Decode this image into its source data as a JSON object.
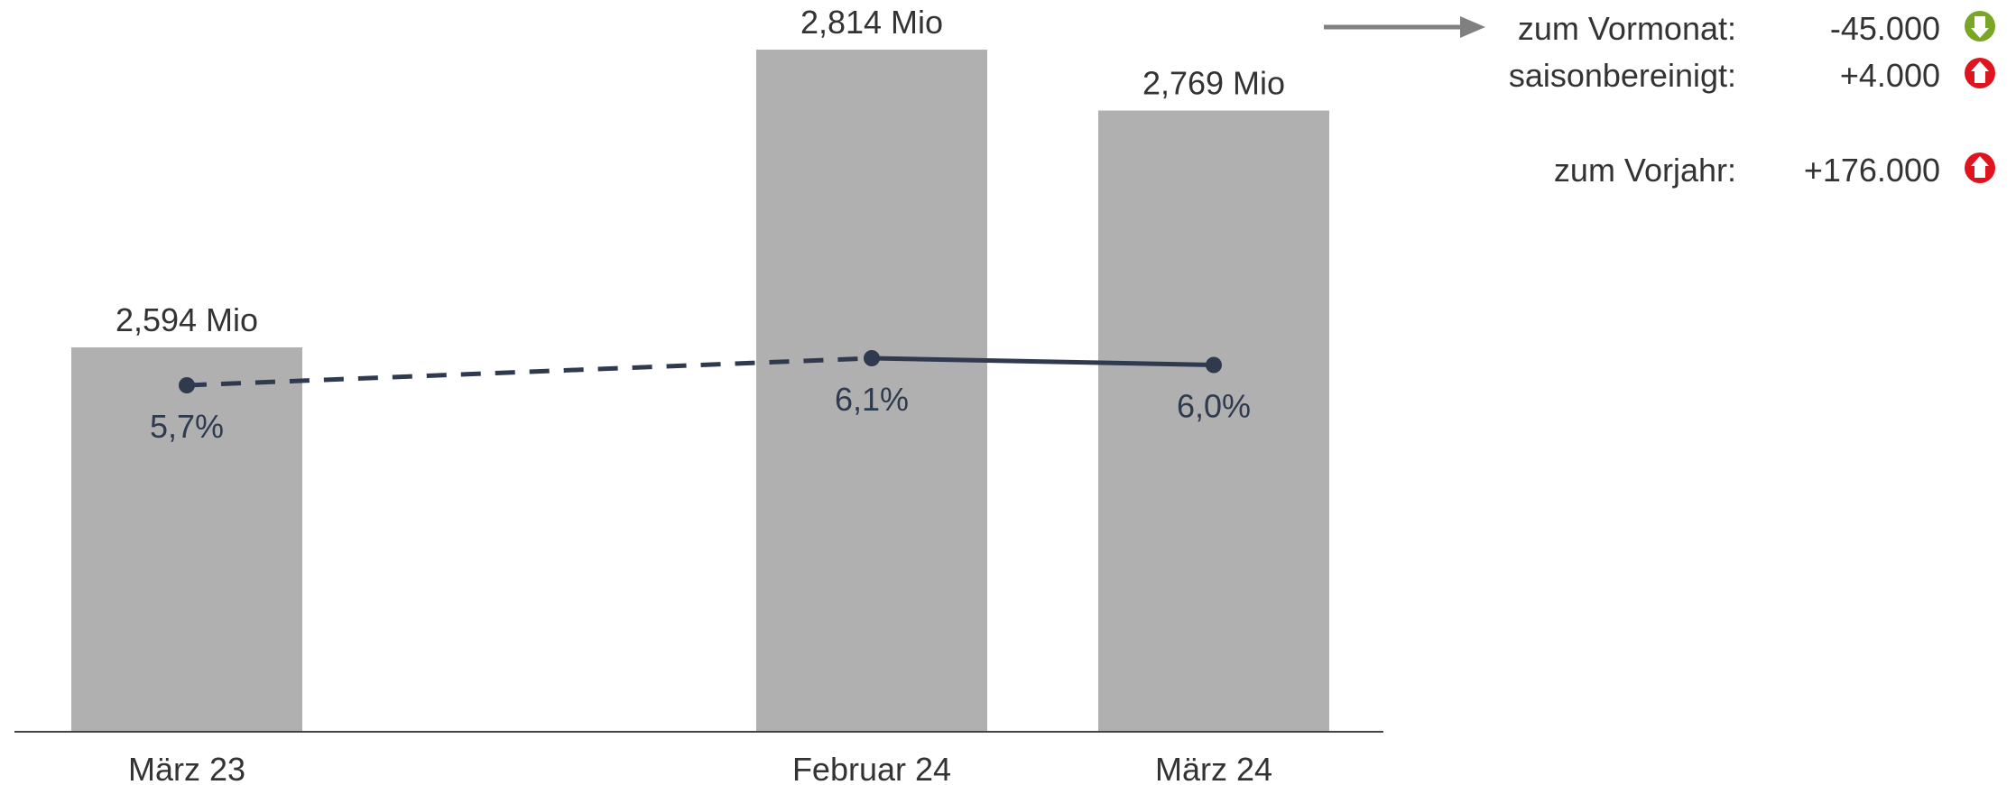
{
  "chart_data": {
    "type": "bar",
    "categories": [
      "März 23",
      "Februar 24",
      "März 24"
    ],
    "series": [
      {
        "type": "bar",
        "values": [
          2.594,
          2.814,
          2.769
        ],
        "color": "#b0b0b0"
      },
      {
        "type": "line",
        "values": [
          5.7,
          6.1,
          6.0
        ],
        "color": "#2f3a4f"
      }
    ],
    "bar_labels": [
      "2,594 Mio",
      "2,814 Mio",
      "2,769 Mio"
    ],
    "line_labels": [
      "5,7%",
      "6,1%",
      "6,0%"
    ],
    "line_segment_styles": [
      "dashed",
      "solid"
    ],
    "grid": false,
    "xlabel": "",
    "ylabel": ""
  },
  "changes": [
    {
      "label": "zum Vormonat:",
      "value": "-45.000",
      "direction": "down",
      "color": "#7aa626",
      "icon": "arrow-down-icon"
    },
    {
      "label": "saisonbereinigt:",
      "value": "+4.000",
      "direction": "up",
      "color": "#e0141e",
      "icon": "arrow-up-icon"
    },
    {
      "label": "zum Vorjahr:",
      "value": "+176.000",
      "direction": "up",
      "color": "#e0141e",
      "icon": "arrow-up-icon"
    }
  ],
  "pointer": {
    "color": "#808080",
    "icon": "pointer-arrow-icon"
  }
}
